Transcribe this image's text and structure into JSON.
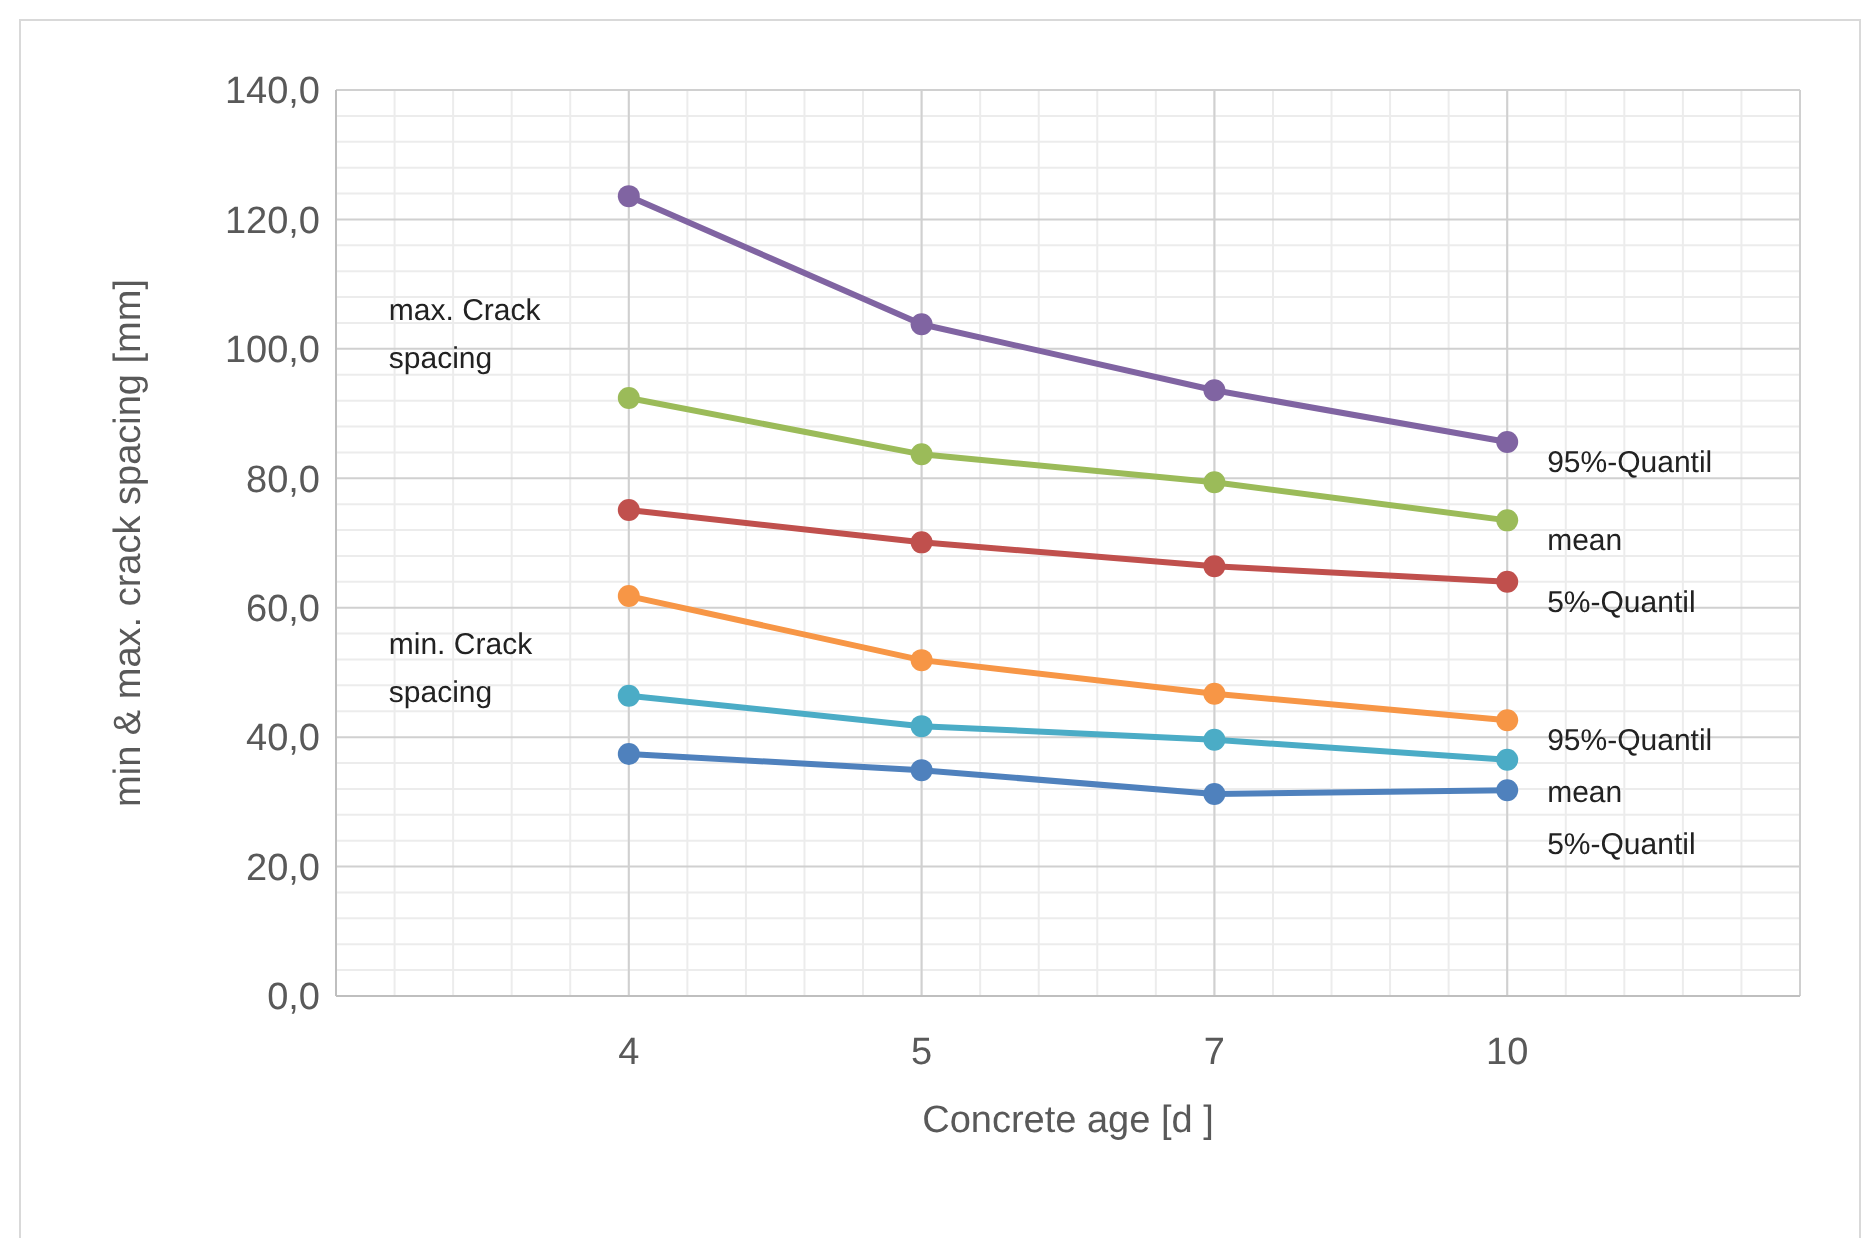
{
  "chart_data": {
    "type": "line",
    "xlabel": "Concrete  age [d ]",
    "ylabel": "min & max. crack spacing [mm]",
    "categories": [
      "4",
      "5",
      "7",
      "10"
    ],
    "ylim": [
      0,
      140
    ],
    "yticks": [
      {
        "value": 0,
        "label": "0,0"
      },
      {
        "value": 20,
        "label": "20,0"
      },
      {
        "value": 40,
        "label": "40,0"
      },
      {
        "value": 60,
        "label": "60,0"
      },
      {
        "value": 80,
        "label": "80,0"
      },
      {
        "value": 100,
        "label": "100,0"
      },
      {
        "value": 120,
        "label": "120,0"
      },
      {
        "value": 140,
        "label": "140,0"
      }
    ],
    "grid": true,
    "marker": "circle",
    "line_style": "solid",
    "annotations": [
      "max. Crack spacing",
      "min. Crack spacing"
    ],
    "series": [
      {
        "name": "95%-Quantil",
        "color": "#8064a2",
        "values": [
          123.6,
          103.8,
          93.6,
          85.6
        ]
      },
      {
        "name": "mean",
        "color": "#9bbb59",
        "values": [
          92.4,
          83.7,
          79.4,
          73.5
        ]
      },
      {
        "name": "5%-Quantil",
        "color": "#c0504d",
        "values": [
          75.1,
          70.1,
          66.4,
          64.0
        ]
      },
      {
        "name": "95%-Quantil",
        "color": "#f79646",
        "values": [
          61.8,
          51.9,
          46.7,
          42.6
        ]
      },
      {
        "name": "mean",
        "color": "#4bacc6",
        "values": [
          46.4,
          41.7,
          39.6,
          36.5
        ]
      },
      {
        "name": "5%-Quantil",
        "color": "#4f81bd",
        "values": [
          37.4,
          34.9,
          31.2,
          31.8
        ]
      }
    ]
  }
}
